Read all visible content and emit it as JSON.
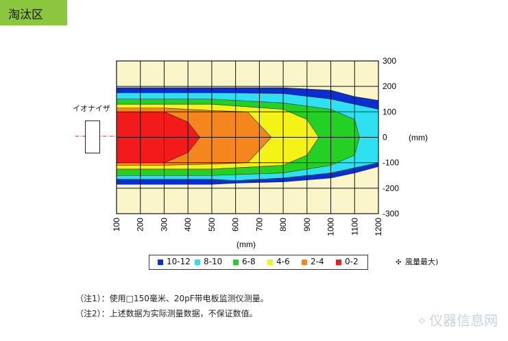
{
  "header": {
    "section_title": "淘汰区"
  },
  "ionizer_label": "イオナイザ",
  "chart_data": {
    "type": "heatmap",
    "xlabel": "(mm)",
    "ylabel": "(mm)",
    "x_ticks": [
      100,
      200,
      300,
      400,
      500,
      600,
      700,
      800,
      900,
      1000,
      1100,
      1200
    ],
    "y_ticks": [
      300,
      200,
      100,
      0,
      -100,
      -200,
      -300
    ],
    "xlim": [
      100,
      1200
    ],
    "ylim": [
      -300,
      300
    ],
    "grid": true,
    "legend_position": "bottom",
    "bands": [
      {
        "name": "10-12",
        "color": "#0a2fd0",
        "outer_top": [
          [
            100,
            195
          ],
          [
            500,
            195
          ],
          [
            800,
            195
          ],
          [
            1000,
            185
          ],
          [
            1100,
            160
          ],
          [
            1200,
            145
          ]
        ],
        "outer_bottom": [
          [
            100,
            -185
          ],
          [
            500,
            -185
          ],
          [
            600,
            -180
          ],
          [
            800,
            -175
          ],
          [
            1000,
            -160
          ],
          [
            1100,
            -140
          ],
          [
            1200,
            -115
          ]
        ]
      },
      {
        "name": "8-10",
        "color": "#2ee0f0",
        "outer_top": [
          [
            100,
            175
          ],
          [
            500,
            175
          ],
          [
            800,
            172
          ],
          [
            1000,
            150
          ],
          [
            1100,
            130
          ],
          [
            1200,
            110
          ]
        ],
        "outer_bottom": [
          [
            100,
            -165
          ],
          [
            500,
            -165
          ],
          [
            600,
            -170
          ],
          [
            800,
            -160
          ],
          [
            1000,
            -140
          ],
          [
            1100,
            -120
          ],
          [
            1200,
            -100
          ]
        ]
      },
      {
        "name": "6-8",
        "color": "#25d025",
        "outer_top": [
          [
            100,
            150
          ],
          [
            500,
            150
          ],
          [
            800,
            135
          ],
          [
            1000,
            110
          ],
          [
            1100,
            70
          ],
          [
            1120,
            0
          ]
        ],
        "outer_bottom": [
          [
            100,
            -150
          ],
          [
            500,
            -150
          ],
          [
            800,
            -140
          ],
          [
            1000,
            -110
          ],
          [
            1100,
            -70
          ],
          [
            1120,
            0
          ]
        ]
      },
      {
        "name": "4-6",
        "color": "#f5f218",
        "outer_top": [
          [
            100,
            130
          ],
          [
            500,
            130
          ],
          [
            800,
            110
          ],
          [
            900,
            70
          ],
          [
            950,
            0
          ]
        ],
        "outer_bottom": [
          [
            100,
            -125
          ],
          [
            500,
            -125
          ],
          [
            800,
            -110
          ],
          [
            900,
            -70
          ],
          [
            950,
            0
          ]
        ]
      },
      {
        "name": "2-4",
        "color": "#f5861e",
        "outer_top": [
          [
            100,
            115
          ],
          [
            300,
            115
          ],
          [
            500,
            105
          ],
          [
            650,
            100
          ],
          [
            750,
            0
          ]
        ],
        "outer_bottom": [
          [
            100,
            -110
          ],
          [
            300,
            -110
          ],
          [
            500,
            -105
          ],
          [
            650,
            -100
          ],
          [
            750,
            0
          ]
        ]
      },
      {
        "name": "0-2",
        "color": "#f21a1a",
        "outer_top": [
          [
            100,
            100
          ],
          [
            300,
            100
          ],
          [
            400,
            60
          ],
          [
            450,
            0
          ]
        ],
        "outer_bottom": [
          [
            100,
            -100
          ],
          [
            300,
            -100
          ],
          [
            400,
            -60
          ],
          [
            450,
            0
          ]
        ]
      }
    ]
  },
  "legend": {
    "items": [
      {
        "label": "10-12",
        "color": "#0a2fd0"
      },
      {
        "label": "8-10",
        "color": "#2ee0f0"
      },
      {
        "label": "6-8",
        "color": "#25d025"
      },
      {
        "label": "4-6",
        "color": "#f5f218"
      },
      {
        "label": "2-4",
        "color": "#f5861e"
      },
      {
        "label": "0-2",
        "color": "#f21a1a"
      }
    ]
  },
  "wind_note": {
    "icon": "fan-icon",
    "text": "風量最大)"
  },
  "notes": [
    "（注1）：使用□150毫米、20pF带电板监测仪测量。",
    "（注2）：上述数据为实际测量数据，不保证数值。"
  ],
  "watermark": "仪器信息网"
}
